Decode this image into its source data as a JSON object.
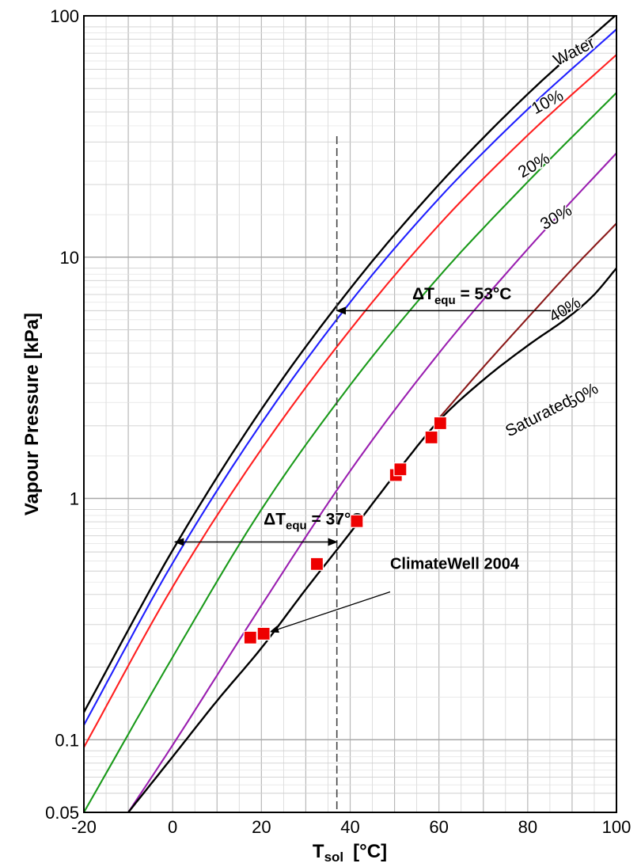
{
  "chart_data": {
    "type": "line",
    "xlabel": "T",
    "xlabel_sub": "sol",
    "xlabel_unit": "[°C]",
    "ylabel": "Vapour Pressure [kPa]",
    "xlim": [
      -20,
      100
    ],
    "ylim": [
      0.05,
      100
    ],
    "y_scale": "log",
    "grid": true,
    "x_ticks": [
      "-20",
      "0",
      "20",
      "40",
      "60",
      "80",
      "100"
    ],
    "y_ticks": [
      "0.05",
      "0.1",
      "1",
      "10",
      "100"
    ],
    "colors": {
      "water": "#000000",
      "c10": "#1f1fff",
      "c20": "#ff1f1f",
      "c30": "#1a9a1a",
      "c40": "#9a1fb0",
      "c50": "#8b1a1a",
      "saturated": "#000000",
      "marker": "#ee0000"
    },
    "series": [
      {
        "key": "water",
        "name": "Water",
        "x": [
          -20,
          0,
          20,
          40,
          60,
          80,
          100
        ],
        "y": [
          0.13,
          0.61,
          2.34,
          7.4,
          20.0,
          47.4,
          101.3
        ]
      },
      {
        "key": "c10",
        "name": "10%",
        "x": [
          -20,
          0,
          20,
          40,
          60,
          80,
          100
        ],
        "y": [
          0.115,
          0.54,
          2.05,
          6.5,
          17.5,
          41.0,
          88.0
        ]
      },
      {
        "key": "c20",
        "name": "20%",
        "x": [
          -20,
          0,
          20,
          40,
          60,
          80,
          100
        ],
        "y": [
          0.093,
          0.43,
          1.6,
          5.0,
          13.6,
          32.0,
          69.0
        ]
      },
      {
        "key": "c30",
        "name": "30%",
        "x": [
          -20,
          0,
          20,
          40,
          60,
          80,
          100
        ],
        "y": [
          0.05,
          0.22,
          0.9,
          2.95,
          8.3,
          20.5,
          48.0
        ]
      },
      {
        "key": "c40",
        "name": "40%",
        "x": [
          -10,
          0,
          20,
          40,
          60,
          80,
          100
        ],
        "y": [
          0.05,
          0.095,
          0.36,
          1.3,
          4.0,
          10.8,
          27.0
        ]
      },
      {
        "key": "c50",
        "name": "50%",
        "x": [
          60,
          70,
          80,
          90,
          100
        ],
        "y": [
          2.15,
          3.5,
          5.6,
          8.9,
          13.8
        ]
      },
      {
        "key": "saturated",
        "name": "Saturated",
        "x": [
          -10,
          0,
          10,
          20,
          30,
          40,
          50,
          60,
          70,
          80,
          90,
          95,
          100
        ],
        "y": [
          0.05,
          0.085,
          0.145,
          0.24,
          0.42,
          0.72,
          1.25,
          2.1,
          3.1,
          4.3,
          5.8,
          7.0,
          9.0
        ]
      }
    ],
    "curve_labels": [
      {
        "key": "water",
        "text": "Water",
        "x": 91,
        "y": 68,
        "angle": -27
      },
      {
        "key": "c10",
        "text": "10%",
        "x": 85,
        "y": 42,
        "angle": -28
      },
      {
        "key": "c20",
        "text": "20%",
        "x": 82,
        "y": 23,
        "angle": -30
      },
      {
        "key": "c30",
        "text": "30%",
        "x": 87,
        "y": 14,
        "angle": -30
      },
      {
        "key": "c40",
        "text": "40%",
        "x": 89,
        "y": 5.8,
        "angle": -31
      },
      {
        "key": "c50",
        "text": "50%",
        "x": 93,
        "y": 2.55,
        "angle": -32
      },
      {
        "key": "saturated",
        "text": "Saturated",
        "x": 83,
        "y": 2.1,
        "angle": -27
      }
    ],
    "measurements": {
      "name": "ClimateWell 2004",
      "x": [
        17.5,
        20.5,
        32.5,
        41.5,
        50.3,
        51.3,
        58.3,
        60.3
      ],
      "y": [
        0.265,
        0.275,
        0.535,
        0.805,
        1.25,
        1.32,
        1.79,
        2.05
      ]
    },
    "vline_x": 37,
    "annotations": {
      "dt37": {
        "main": "ΔT",
        "sub": "equ",
        "rest": " = 37°C",
        "y": 0.66,
        "x_from": 0.5,
        "x_to": 37,
        "label_x": 20.5,
        "label_y": 0.78
      },
      "dt53": {
        "main": "ΔT",
        "sub": "equ",
        "rest": " = 53°C",
        "y": 6.0,
        "x_from": 37,
        "x_to": 90,
        "label_x": 54,
        "label_y": 6.7
      },
      "climatewell": {
        "text": "ClimateWell 2004",
        "label_x": 49,
        "label_y": 0.51,
        "arrow_from_x": 49,
        "arrow_from_y": 0.41,
        "arrow_to_x": 22,
        "arrow_to_y": 0.28
      }
    }
  }
}
